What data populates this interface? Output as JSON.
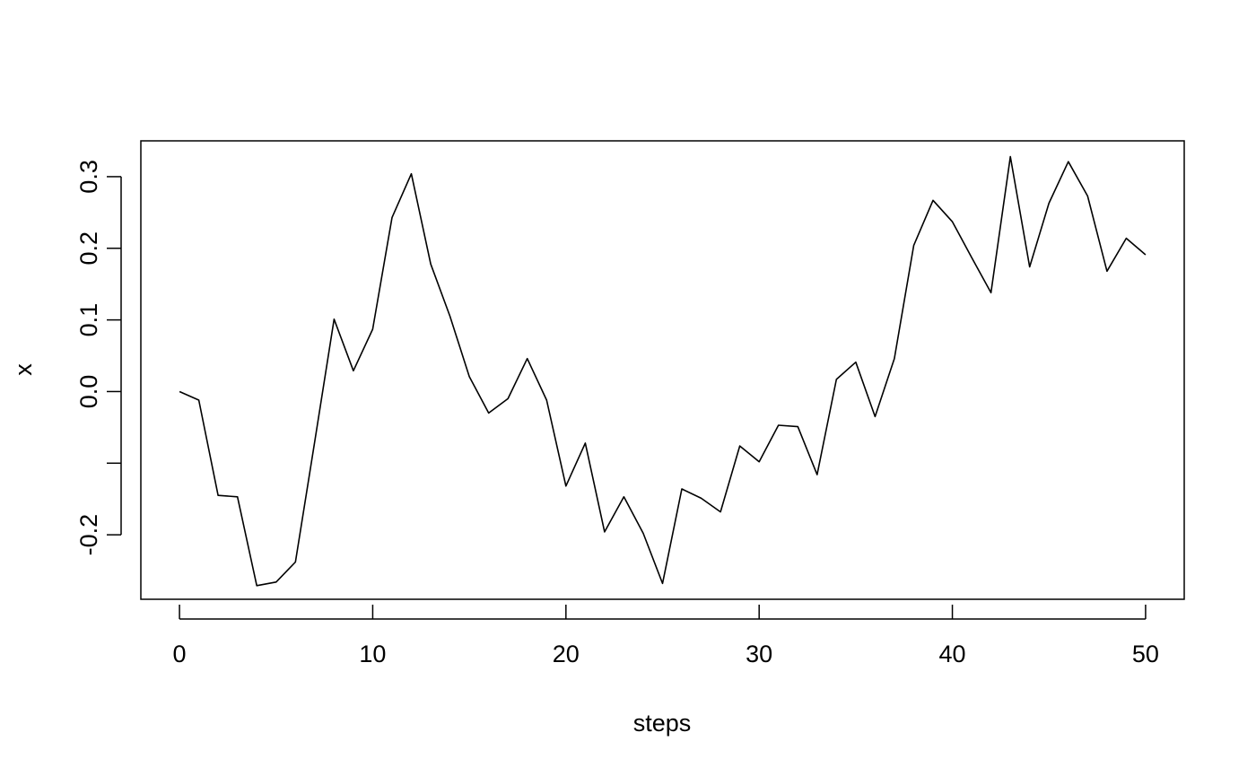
{
  "chart_data": {
    "type": "line",
    "title": "",
    "xlabel": "steps",
    "ylabel": "x",
    "xlim": [
      -2,
      52
    ],
    "ylim": [
      -0.29,
      0.35
    ],
    "x_ticks": [
      0,
      10,
      20,
      30,
      40,
      50
    ],
    "x_tick_labels": [
      "0",
      "10",
      "20",
      "30",
      "40",
      "50"
    ],
    "y_ticks": [
      -0.2,
      -0.1,
      0.0,
      0.1,
      0.2,
      0.3
    ],
    "y_tick_labels": [
      "-0.2",
      "",
      "0.0",
      "0.1",
      "0.2",
      "0.3"
    ],
    "grid": false,
    "legend": "none",
    "line_color": "#000000",
    "series": [
      {
        "x": [
          0,
          1,
          2,
          3,
          4,
          5,
          6,
          7,
          8,
          9,
          10,
          11,
          12,
          13,
          14,
          15,
          16,
          17,
          18,
          19,
          20,
          21,
          22,
          23,
          24,
          25,
          26,
          27,
          28,
          29,
          30,
          31,
          32,
          33,
          34,
          35,
          36,
          37,
          38,
          39,
          40,
          41,
          42,
          43,
          44,
          45,
          46,
          47,
          48,
          49,
          50
        ],
        "values": [
          0.0,
          -0.012,
          -0.145,
          -0.147,
          -0.271,
          -0.266,
          -0.238,
          -0.07,
          0.101,
          0.029,
          0.087,
          0.243,
          0.304,
          0.178,
          0.105,
          0.021,
          -0.03,
          -0.01,
          0.046,
          -0.012,
          -0.132,
          -0.072,
          -0.196,
          -0.147,
          -0.198,
          -0.268,
          -0.136,
          -0.149,
          -0.168,
          -0.076,
          -0.098,
          -0.047,
          -0.049,
          -0.116,
          0.017,
          0.041,
          -0.035,
          0.046,
          0.204,
          0.267,
          0.237,
          0.187,
          0.138,
          0.328,
          0.174,
          0.263,
          0.321,
          0.273,
          0.168,
          0.214,
          0.191
        ]
      }
    ]
  }
}
